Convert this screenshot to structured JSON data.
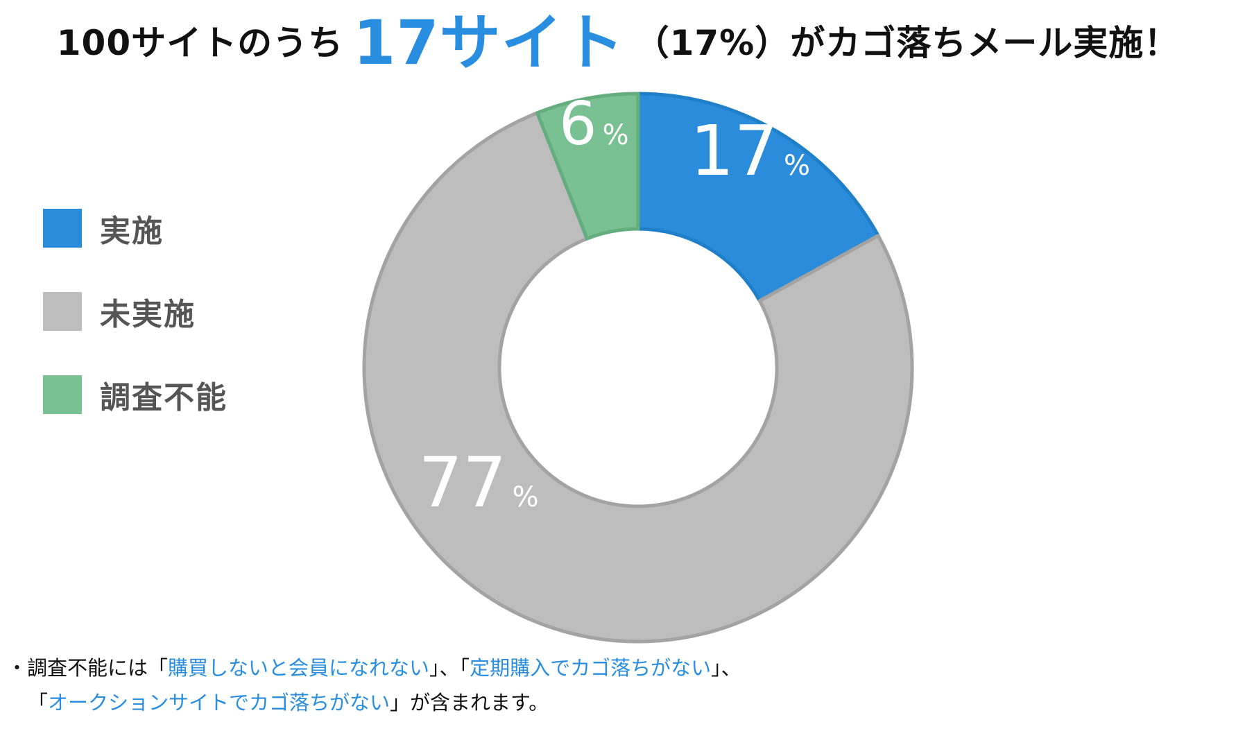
{
  "title": {
    "prefix": "100サイトのうち",
    "highlight": "17サイト",
    "suffix": "（17%）がカゴ落ちメール実施！"
  },
  "colors": {
    "implemented": "#2a8cda",
    "not_implemented": "#bdbdbd",
    "unknown": "#79c093",
    "accent_text": "#2a8ee0"
  },
  "chart_data": {
    "type": "pie",
    "donut": true,
    "categories": [
      "実施",
      "未実施",
      "調査不能"
    ],
    "values": [
      17,
      77,
      6
    ],
    "data_labels": [
      "17",
      "77",
      "6"
    ],
    "unit": "%",
    "legend_position": "left"
  },
  "note": {
    "bullet": "・",
    "line1_a": "調査不能には「",
    "line1_b": "購買しないと会員になれない",
    "line1_c": "」、「",
    "line1_d": "定期購入でカゴ落ちがない",
    "line1_e": "」、",
    "line2_a": "「",
    "line2_b": "オークションサイトでカゴ落ちがない",
    "line2_c": "」が含まれます。"
  }
}
